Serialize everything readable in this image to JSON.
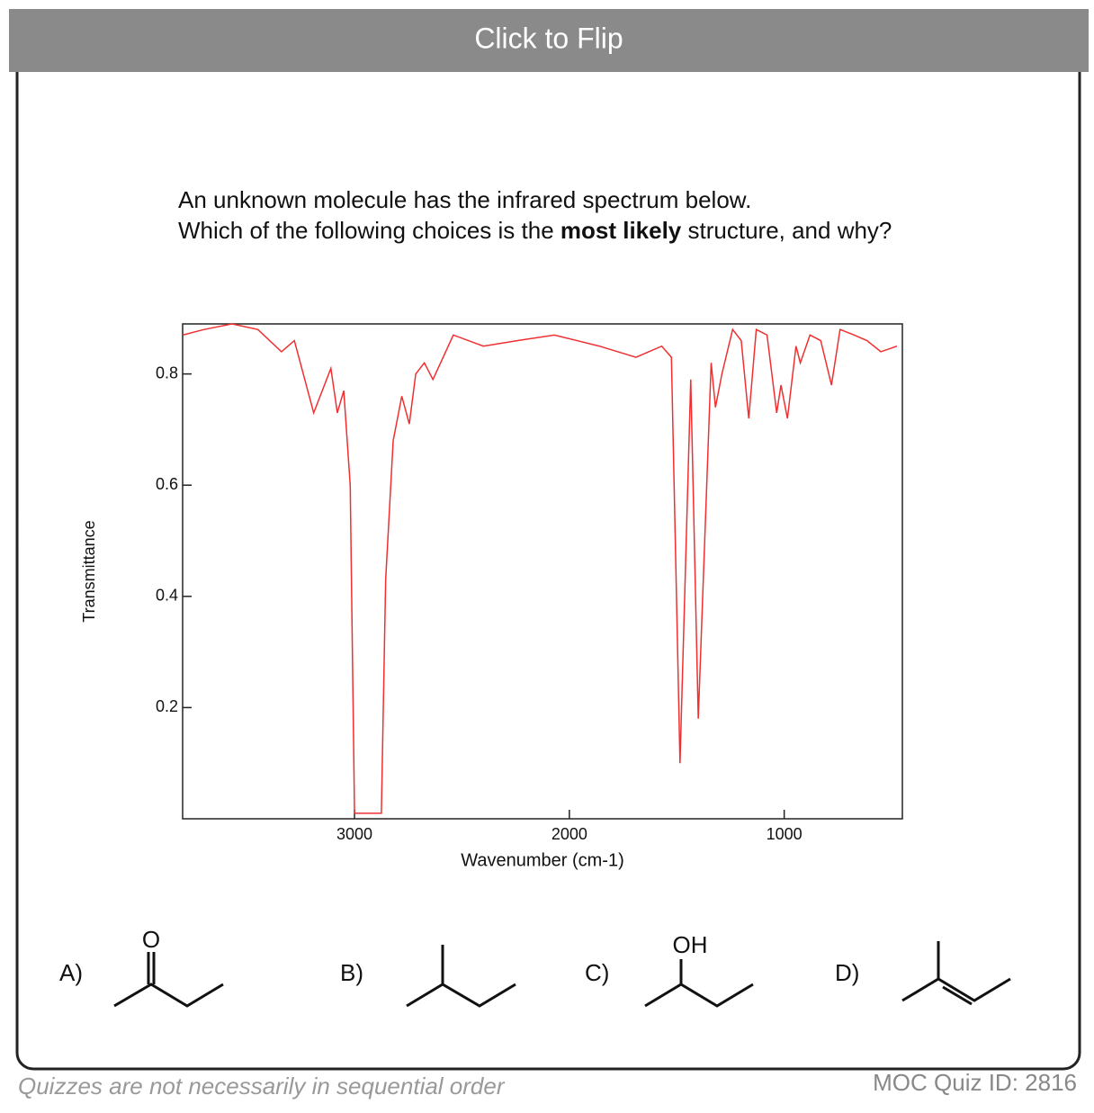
{
  "header": {
    "button": "Click to Flip"
  },
  "question": {
    "line1": "An unknown molecule has the infrared spectrum below.",
    "line2_parts": [
      "Which of the following choices is the ",
      "most likely",
      " structure, and why?"
    ]
  },
  "chart_data": {
    "type": "line",
    "x_label": "Wavenumber (cm-1)",
    "y_label": "Transmittance",
    "xlim": [
      3800,
      450
    ],
    "ylim": [
      0,
      0.89
    ],
    "xticks": [
      3000,
      2000,
      1000
    ],
    "yticks": [
      0.2,
      0.4,
      0.6,
      0.8
    ],
    "x": [
      3800,
      3700,
      3570,
      3450,
      3340,
      3280,
      3190,
      3110,
      3080,
      3050,
      3020,
      3000,
      2875,
      2855,
      2820,
      2780,
      2745,
      2715,
      2675,
      2635,
      2540,
      2400,
      2240,
      2070,
      1860,
      1690,
      1570,
      1525,
      1485,
      1435,
      1400,
      1340,
      1320,
      1290,
      1240,
      1200,
      1165,
      1130,
      1080,
      1035,
      1015,
      985,
      945,
      925,
      880,
      830,
      780,
      740,
      675,
      615,
      550,
      475
    ],
    "series": [
      {
        "color": "#f03030",
        "values": [
          0.87,
          0.88,
          0.89,
          0.88,
          0.84,
          0.86,
          0.73,
          0.81,
          0.73,
          0.77,
          0.6,
          0.01,
          0.01,
          0.43,
          0.68,
          0.76,
          0.71,
          0.8,
          0.82,
          0.79,
          0.87,
          0.85,
          0.86,
          0.87,
          0.85,
          0.83,
          0.85,
          0.83,
          0.1,
          0.79,
          0.18,
          0.82,
          0.74,
          0.8,
          0.88,
          0.86,
          0.72,
          0.88,
          0.87,
          0.73,
          0.78,
          0.72,
          0.85,
          0.82,
          0.87,
          0.86,
          0.78,
          0.88,
          0.87,
          0.86,
          0.84,
          0.85
        ]
      }
    ]
  },
  "choices": [
    {
      "label": "A)",
      "atom": "O"
    },
    {
      "label": "B)"
    },
    {
      "label": "C)",
      "atom": "OH"
    },
    {
      "label": "D)"
    }
  ],
  "footer": {
    "note": "Quizzes are not necessarily in sequential order",
    "quiz_id": "MOC Quiz ID: 2816"
  }
}
